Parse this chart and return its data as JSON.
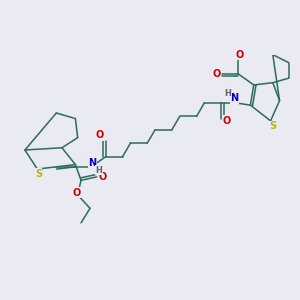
{
  "background_color": "#eaeaf2",
  "bond_color": "#2d6b5a",
  "atom_colors": {
    "S": "#b8b800",
    "N": "#0000cc",
    "O": "#cc0000",
    "H": "#666666",
    "C": "#2d6b5a"
  },
  "figsize": [
    3.0,
    3.0
  ],
  "dpi": 100,
  "lw": 1.1
}
